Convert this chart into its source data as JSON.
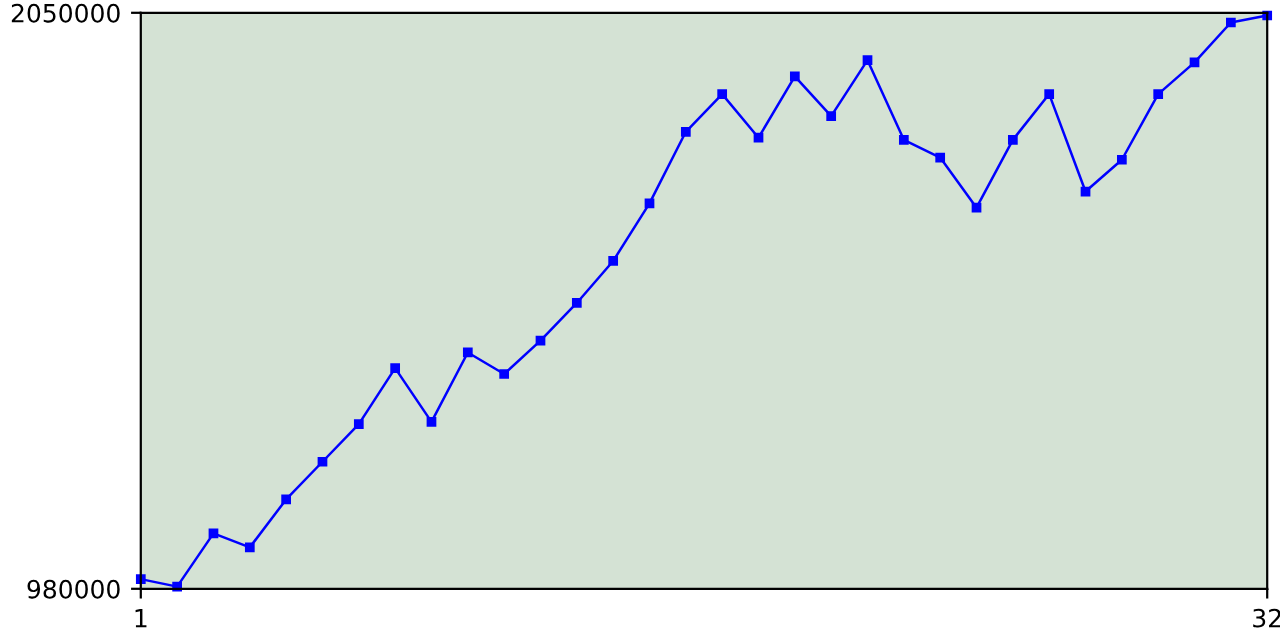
{
  "chart_data": {
    "type": "line",
    "x": [
      1,
      2,
      3,
      4,
      5,
      6,
      7,
      8,
      9,
      10,
      11,
      12,
      13,
      14,
      15,
      16,
      17,
      18,
      19,
      20,
      21,
      22,
      23,
      24,
      25,
      26,
      27,
      28,
      29,
      30,
      31,
      32
    ],
    "series": [
      {
        "color": "#0000ff",
        "values": [
          998000,
          984000,
          1083000,
          1057000,
          1146000,
          1216000,
          1286000,
          1390000,
          1290000,
          1419000,
          1379000,
          1441000,
          1511000,
          1589000,
          1696000,
          1829000,
          1899000,
          1818000,
          1932000,
          1858000,
          1962000,
          1814000,
          1781000,
          1688000,
          1814000,
          1899000,
          1718000,
          1777000,
          1899000,
          1958000,
          2032000,
          2045000
        ]
      }
    ],
    "xlim": [
      1,
      32
    ],
    "xticks": [
      1,
      32
    ],
    "ylim": [
      980000,
      2050000
    ],
    "yticks": [
      980000,
      2050000
    ],
    "grid": false,
    "legend": false,
    "marker": "square",
    "line_style": "solid"
  }
}
